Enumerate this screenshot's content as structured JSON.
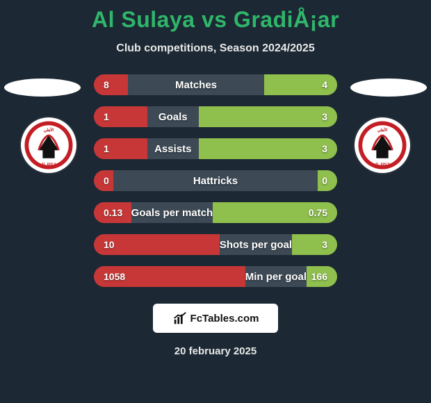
{
  "title_color": "#2fb66b",
  "title_text": "Al Sulaya vs GradiÅ¡ar",
  "subtitle": "Club competitions, Season 2024/2025",
  "ellipse_color": "#ffffff",
  "mid_color": "#3d4a56",
  "left_color": "#c83737",
  "right_color": "#8fbf4d",
  "val_text_color": "#ffffff",
  "stats": [
    {
      "label": "Matches",
      "left_val": "8",
      "right_val": "4",
      "left_pct": 14,
      "right_pct": 30
    },
    {
      "label": "Goals",
      "left_val": "1",
      "right_val": "3",
      "left_pct": 22,
      "right_pct": 57
    },
    {
      "label": "Assists",
      "left_val": "1",
      "right_val": "3",
      "left_pct": 22,
      "right_pct": 57
    },
    {
      "label": "Hattricks",
      "left_val": "0",
      "right_val": "0",
      "left_pct": 8,
      "right_pct": 8
    },
    {
      "label": "Goals per match",
      "left_val": "0.13",
      "right_val": "0.75",
      "left_pct": 17,
      "right_pct": 58
    },
    {
      "label": "Shots per goal",
      "left_val": "10",
      "right_val": "3",
      "left_pct": 63,
      "right_pct": 22
    },
    {
      "label": "Min per goal",
      "left_val": "1058",
      "right_val": "166",
      "left_pct": 72,
      "right_pct": 14
    }
  ],
  "brand_text": "FcTables.com",
  "date_text": "20 february 2025",
  "crest": {
    "bg": "#c41e25",
    "accent": "#111111",
    "text": "AL AHLY"
  }
}
